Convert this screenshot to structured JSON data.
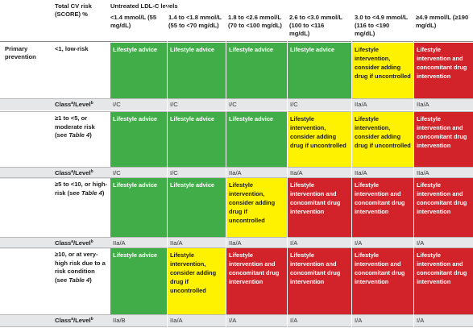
{
  "header": {
    "risk_col": "Total CV risk (SCORE) %",
    "untreated": "Untreated LDL-C levels",
    "levels": [
      "<1.4 mmol/L (55 mg/dL)",
      "1.4 to <1.8 mmol/L (55 to <70 mg/dL)",
      "1.8 to <2.6 mmol/L (70 to <100 mg/dL)",
      "2.6 to <3.0 mmol/L (100 to <116 mg/dL)",
      "3.0 to <4.9 mmol/L (116 to <190 mg/dL)",
      "≥4.9 mmol/L (≥190 mg/dL)"
    ]
  },
  "section": "Primary prevention",
  "class_label": "Class",
  "level_label": "Level",
  "class_sup": "a",
  "level_sup": "b",
  "texts": {
    "advice": "Lifestyle advice",
    "consider": "Lifestyle intervention, consider adding drug if uncontrolled",
    "concomitant": "Lifestyle intervention and concomitant drug intervention"
  },
  "rows": [
    {
      "risk": "<1, low-risk",
      "cells": [
        "green",
        "green",
        "green",
        "green",
        "yellow",
        "red"
      ],
      "classes": [
        "I/C",
        "I/C",
        "I/C",
        "I/C",
        "IIa/A",
        "IIa/A"
      ]
    },
    {
      "risk_main": "≥1 to <5, or moderate risk",
      "risk_see": "(see",
      "risk_table": "Table 4",
      "risk_close": ")",
      "cells": [
        "green",
        "green",
        "green",
        "yellow",
        "yellow",
        "red"
      ],
      "classes": [
        "I/C",
        "I/C",
        "IIa/A",
        "IIa/A",
        "IIa/A",
        "IIa/A"
      ]
    },
    {
      "risk_main": "≥5 to <10, or high-risk",
      "risk_see": "(see",
      "risk_table": "Table 4",
      "risk_close": ")",
      "cells": [
        "green",
        "green",
        "yellow",
        "red",
        "red",
        "red"
      ],
      "classes": [
        "IIa/A",
        "IIa/A",
        "IIa/A",
        "I/A",
        "I/A",
        "I/A"
      ]
    },
    {
      "risk_main": "≥10, or at very-high risk due to a risk condition",
      "risk_see": "(see",
      "risk_table": "Table 4",
      "risk_close": ")",
      "cells": [
        "green",
        "yellow",
        "red",
        "red",
        "red",
        "red"
      ],
      "classes": [
        "IIa/B",
        "IIa/A",
        "I/A",
        "I/A",
        "I/A",
        "I/A"
      ]
    }
  ]
}
